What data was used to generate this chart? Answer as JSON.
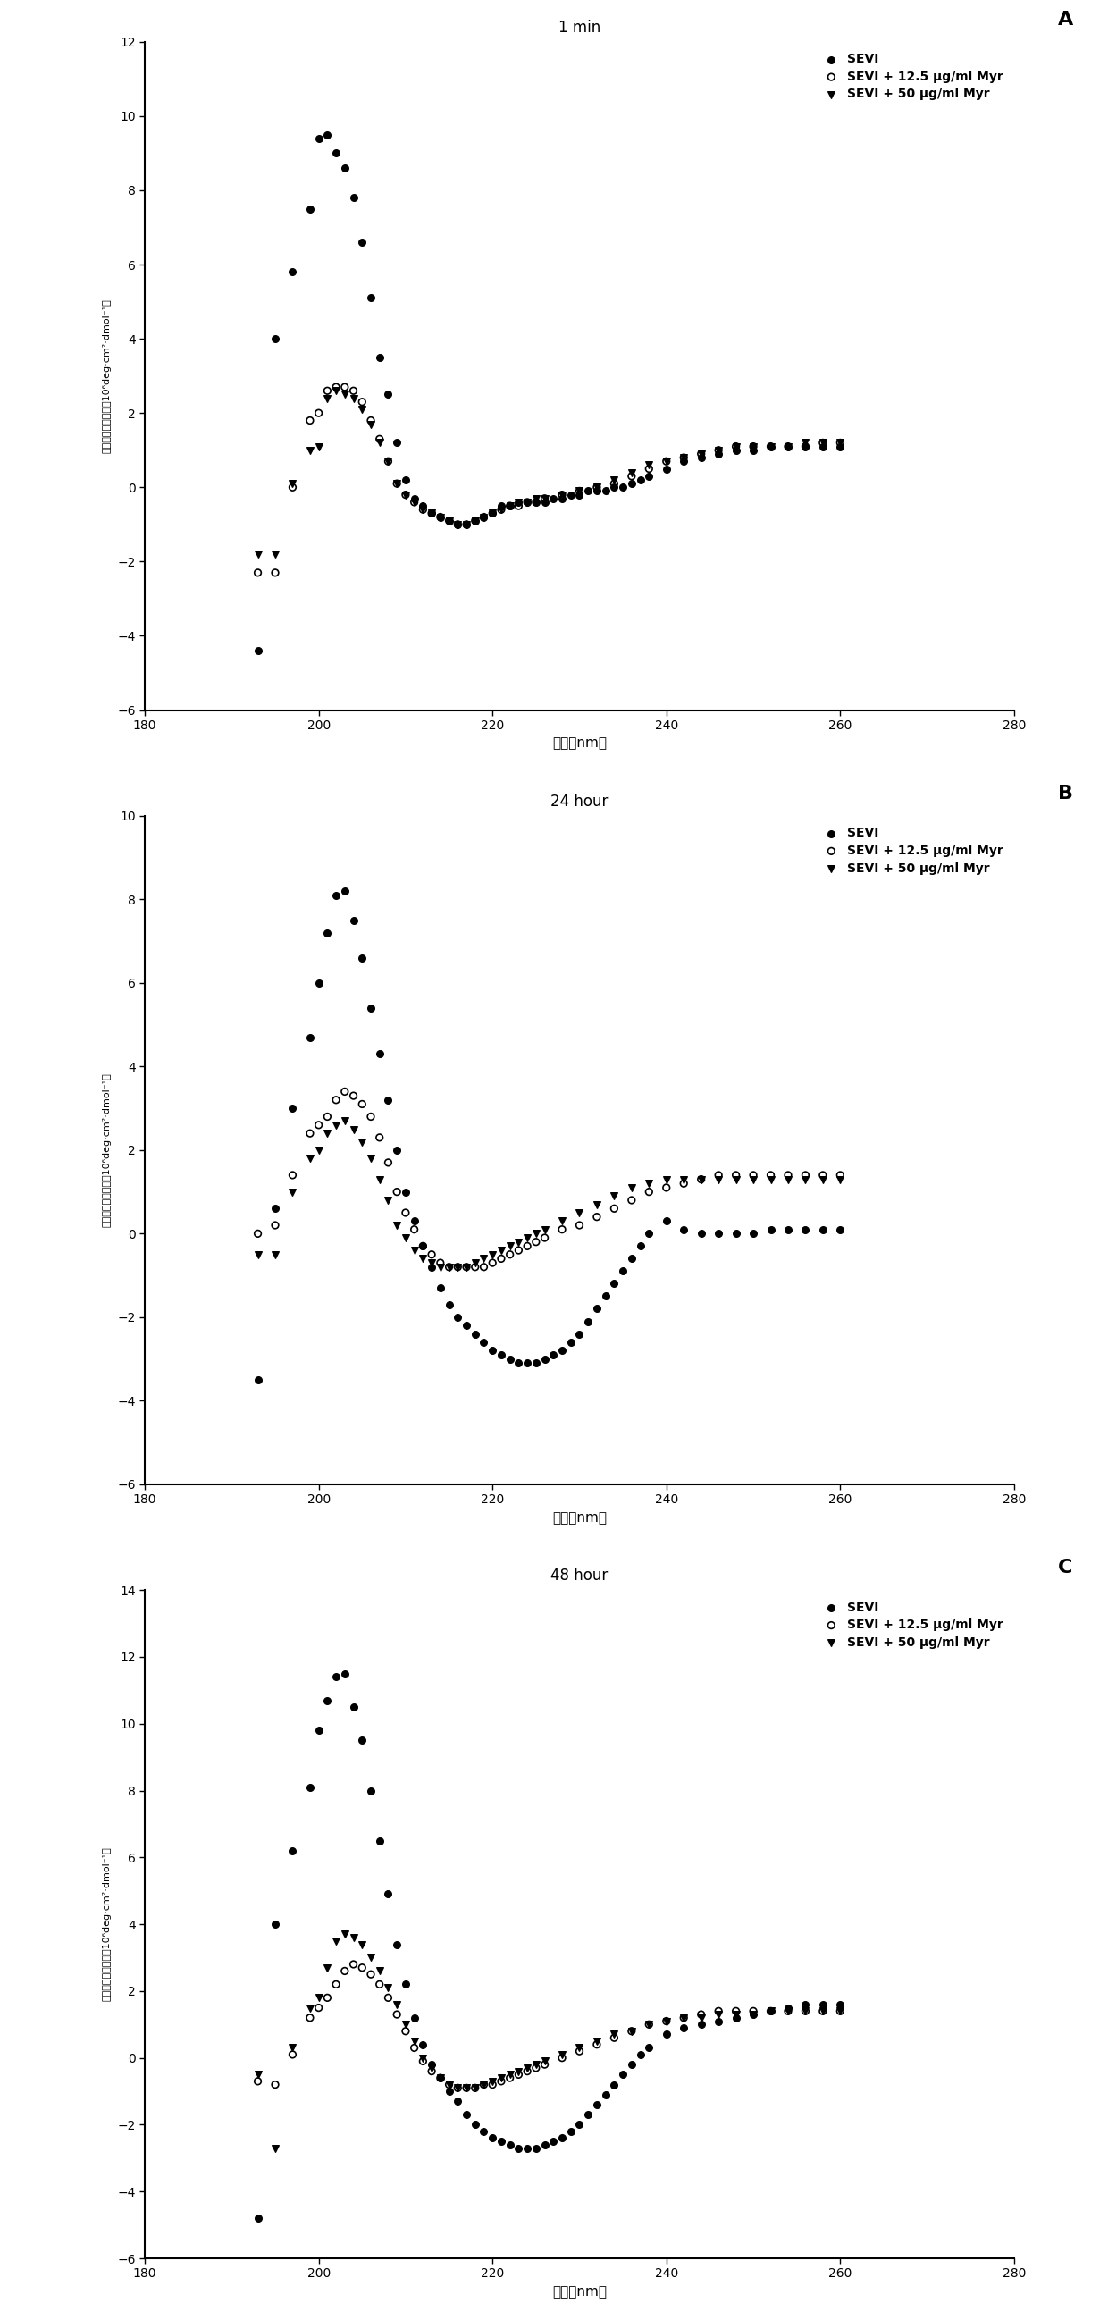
{
  "panels": [
    {
      "title": "1 min",
      "label": "A",
      "ylim": [
        -6,
        12
      ],
      "yticks": [
        -6,
        -4,
        -2,
        0,
        2,
        4,
        6,
        8,
        10,
        12
      ],
      "sevi": {
        "x": [
          193,
          195,
          197,
          199,
          200,
          201,
          202,
          203,
          204,
          205,
          206,
          207,
          208,
          209,
          210,
          211,
          212,
          213,
          214,
          215,
          216,
          217,
          218,
          219,
          220,
          221,
          222,
          223,
          224,
          225,
          226,
          227,
          228,
          229,
          230,
          231,
          232,
          233,
          234,
          235,
          236,
          237,
          238,
          240,
          242,
          244,
          246,
          248,
          250,
          252,
          254,
          256,
          258,
          260
        ],
        "y": [
          -4.4,
          4.0,
          5.8,
          7.5,
          9.4,
          9.5,
          9.0,
          8.6,
          7.8,
          6.6,
          5.1,
          3.5,
          2.5,
          1.2,
          0.2,
          -0.3,
          -0.5,
          -0.7,
          -0.8,
          -0.9,
          -1.0,
          -1.0,
          -0.9,
          -0.8,
          -0.7,
          -0.5,
          -0.5,
          -0.4,
          -0.4,
          -0.4,
          -0.4,
          -0.3,
          -0.3,
          -0.2,
          -0.2,
          -0.1,
          -0.1,
          -0.1,
          -0.0,
          -0.0,
          0.1,
          0.2,
          0.3,
          0.5,
          0.7,
          0.8,
          0.9,
          1.0,
          1.0,
          1.1,
          1.1,
          1.1,
          1.1,
          1.1
        ]
      },
      "sevi_12": {
        "x": [
          193,
          195,
          197,
          199,
          200,
          201,
          202,
          203,
          204,
          205,
          206,
          207,
          208,
          209,
          210,
          211,
          212,
          213,
          214,
          215,
          216,
          217,
          218,
          219,
          220,
          221,
          222,
          223,
          224,
          225,
          226,
          228,
          230,
          232,
          234,
          236,
          238,
          240,
          242,
          244,
          246,
          248,
          250,
          252,
          254,
          256,
          258,
          260
        ],
        "y": [
          -2.3,
          -2.3,
          0.0,
          1.8,
          2.0,
          2.6,
          2.7,
          2.7,
          2.6,
          2.3,
          1.8,
          1.3,
          0.7,
          0.1,
          -0.2,
          -0.4,
          -0.6,
          -0.7,
          -0.8,
          -0.9,
          -1.0,
          -1.0,
          -0.9,
          -0.8,
          -0.7,
          -0.6,
          -0.5,
          -0.5,
          -0.4,
          -0.4,
          -0.3,
          -0.2,
          -0.1,
          -0.0,
          0.1,
          0.3,
          0.5,
          0.7,
          0.8,
          0.9,
          1.0,
          1.1,
          1.1,
          1.1,
          1.1,
          1.1,
          1.2,
          1.2
        ]
      },
      "sevi_50": {
        "x": [
          193,
          195,
          197,
          199,
          200,
          201,
          202,
          203,
          204,
          205,
          206,
          207,
          208,
          209,
          210,
          211,
          212,
          213,
          214,
          215,
          216,
          217,
          218,
          219,
          220,
          221,
          222,
          223,
          224,
          225,
          226,
          228,
          230,
          232,
          234,
          236,
          238,
          240,
          242,
          244,
          246,
          248,
          250,
          252,
          254,
          256,
          258,
          260
        ],
        "y": [
          -1.8,
          -1.8,
          0.1,
          1.0,
          1.1,
          2.4,
          2.6,
          2.5,
          2.4,
          2.1,
          1.7,
          1.2,
          0.7,
          0.1,
          -0.2,
          -0.4,
          -0.6,
          -0.7,
          -0.8,
          -0.9,
          -1.0,
          -1.0,
          -0.9,
          -0.8,
          -0.7,
          -0.6,
          -0.5,
          -0.4,
          -0.4,
          -0.3,
          -0.3,
          -0.2,
          -0.1,
          0.0,
          0.2,
          0.4,
          0.6,
          0.7,
          0.8,
          0.9,
          1.0,
          1.1,
          1.1,
          1.1,
          1.1,
          1.2,
          1.2,
          1.2
        ]
      }
    },
    {
      "title": "24 hour",
      "label": "B",
      "ylim": [
        -6,
        10
      ],
      "yticks": [
        -6,
        -4,
        -2,
        0,
        2,
        4,
        6,
        8,
        10
      ],
      "sevi": {
        "x": [
          193,
          195,
          197,
          199,
          200,
          201,
          202,
          203,
          204,
          205,
          206,
          207,
          208,
          209,
          210,
          211,
          212,
          213,
          214,
          215,
          216,
          217,
          218,
          219,
          220,
          221,
          222,
          223,
          224,
          225,
          226,
          227,
          228,
          229,
          230,
          231,
          232,
          233,
          234,
          235,
          236,
          237,
          238,
          240,
          242,
          244,
          246,
          248,
          250,
          252,
          254,
          256,
          258,
          260
        ],
        "y": [
          -3.5,
          0.6,
          3.0,
          4.7,
          6.0,
          7.2,
          8.1,
          8.2,
          7.5,
          6.6,
          5.4,
          4.3,
          3.2,
          2.0,
          1.0,
          0.3,
          -0.3,
          -0.8,
          -1.3,
          -1.7,
          -2.0,
          -2.2,
          -2.4,
          -2.6,
          -2.8,
          -2.9,
          -3.0,
          -3.1,
          -3.1,
          -3.1,
          -3.0,
          -2.9,
          -2.8,
          -2.6,
          -2.4,
          -2.1,
          -1.8,
          -1.5,
          -1.2,
          -0.9,
          -0.6,
          -0.3,
          0.0,
          0.3,
          0.1,
          0.0,
          0.0,
          0.0,
          0.0,
          0.1,
          0.1,
          0.1,
          0.1,
          0.1
        ]
      },
      "sevi_12": {
        "x": [
          193,
          195,
          197,
          199,
          200,
          201,
          202,
          203,
          204,
          205,
          206,
          207,
          208,
          209,
          210,
          211,
          212,
          213,
          214,
          215,
          216,
          217,
          218,
          219,
          220,
          221,
          222,
          223,
          224,
          225,
          226,
          228,
          230,
          232,
          234,
          236,
          238,
          240,
          242,
          244,
          246,
          248,
          250,
          252,
          254,
          256,
          258,
          260
        ],
        "y": [
          0.0,
          0.2,
          1.4,
          2.4,
          2.6,
          2.8,
          3.2,
          3.4,
          3.3,
          3.1,
          2.8,
          2.3,
          1.7,
          1.0,
          0.5,
          0.1,
          -0.3,
          -0.5,
          -0.7,
          -0.8,
          -0.8,
          -0.8,
          -0.8,
          -0.8,
          -0.7,
          -0.6,
          -0.5,
          -0.4,
          -0.3,
          -0.2,
          -0.1,
          0.1,
          0.2,
          0.4,
          0.6,
          0.8,
          1.0,
          1.1,
          1.2,
          1.3,
          1.4,
          1.4,
          1.4,
          1.4,
          1.4,
          1.4,
          1.4,
          1.4
        ]
      },
      "sevi_50": {
        "x": [
          193,
          195,
          197,
          199,
          200,
          201,
          202,
          203,
          204,
          205,
          206,
          207,
          208,
          209,
          210,
          211,
          212,
          213,
          214,
          215,
          216,
          217,
          218,
          219,
          220,
          221,
          222,
          223,
          224,
          225,
          226,
          228,
          230,
          232,
          234,
          236,
          238,
          240,
          242,
          244,
          246,
          248,
          250,
          252,
          254,
          256,
          258,
          260
        ],
        "y": [
          -0.5,
          -0.5,
          1.0,
          1.8,
          2.0,
          2.4,
          2.6,
          2.7,
          2.5,
          2.2,
          1.8,
          1.3,
          0.8,
          0.2,
          -0.1,
          -0.4,
          -0.6,
          -0.7,
          -0.8,
          -0.8,
          -0.8,
          -0.8,
          -0.7,
          -0.6,
          -0.5,
          -0.4,
          -0.3,
          -0.2,
          -0.1,
          0.0,
          0.1,
          0.3,
          0.5,
          0.7,
          0.9,
          1.1,
          1.2,
          1.3,
          1.3,
          1.3,
          1.3,
          1.3,
          1.3,
          1.3,
          1.3,
          1.3,
          1.3,
          1.3
        ]
      }
    },
    {
      "title": "48 hour",
      "label": "C",
      "ylim": [
        -6,
        14
      ],
      "yticks": [
        -6,
        -4,
        -2,
        0,
        2,
        4,
        6,
        8,
        10,
        12,
        14
      ],
      "sevi": {
        "x": [
          193,
          195,
          197,
          199,
          200,
          201,
          202,
          203,
          204,
          205,
          206,
          207,
          208,
          209,
          210,
          211,
          212,
          213,
          214,
          215,
          216,
          217,
          218,
          219,
          220,
          221,
          222,
          223,
          224,
          225,
          226,
          227,
          228,
          229,
          230,
          231,
          232,
          233,
          234,
          235,
          236,
          237,
          238,
          240,
          242,
          244,
          246,
          248,
          250,
          252,
          254,
          256,
          258,
          260
        ],
        "y": [
          -4.8,
          4.0,
          6.2,
          8.1,
          9.8,
          10.7,
          11.4,
          11.5,
          10.5,
          9.5,
          8.0,
          6.5,
          4.9,
          3.4,
          2.2,
          1.2,
          0.4,
          -0.2,
          -0.6,
          -1.0,
          -1.3,
          -1.7,
          -2.0,
          -2.2,
          -2.4,
          -2.5,
          -2.6,
          -2.7,
          -2.7,
          -2.7,
          -2.6,
          -2.5,
          -2.4,
          -2.2,
          -2.0,
          -1.7,
          -1.4,
          -1.1,
          -0.8,
          -0.5,
          -0.2,
          0.1,
          0.3,
          0.7,
          0.9,
          1.0,
          1.1,
          1.2,
          1.3,
          1.4,
          1.5,
          1.6,
          1.6,
          1.6
        ]
      },
      "sevi_12": {
        "x": [
          193,
          195,
          197,
          199,
          200,
          201,
          202,
          203,
          204,
          205,
          206,
          207,
          208,
          209,
          210,
          211,
          212,
          213,
          214,
          215,
          216,
          217,
          218,
          219,
          220,
          221,
          222,
          223,
          224,
          225,
          226,
          228,
          230,
          232,
          234,
          236,
          238,
          240,
          242,
          244,
          246,
          248,
          250,
          252,
          254,
          256,
          258,
          260
        ],
        "y": [
          -0.7,
          -0.8,
          0.1,
          1.2,
          1.5,
          1.8,
          2.2,
          2.6,
          2.8,
          2.7,
          2.5,
          2.2,
          1.8,
          1.3,
          0.8,
          0.3,
          -0.1,
          -0.4,
          -0.6,
          -0.8,
          -0.9,
          -0.9,
          -0.9,
          -0.8,
          -0.8,
          -0.7,
          -0.6,
          -0.5,
          -0.4,
          -0.3,
          -0.2,
          0.0,
          0.2,
          0.4,
          0.6,
          0.8,
          1.0,
          1.1,
          1.2,
          1.3,
          1.4,
          1.4,
          1.4,
          1.4,
          1.4,
          1.4,
          1.4,
          1.4
        ]
      },
      "sevi_50": {
        "x": [
          193,
          195,
          197,
          199,
          200,
          201,
          202,
          203,
          204,
          205,
          206,
          207,
          208,
          209,
          210,
          211,
          212,
          213,
          214,
          215,
          216,
          217,
          218,
          219,
          220,
          221,
          222,
          223,
          224,
          225,
          226,
          228,
          230,
          232,
          234,
          236,
          238,
          240,
          242,
          244,
          246,
          248,
          250,
          252,
          254,
          256,
          258,
          260
        ],
        "y": [
          -0.5,
          -2.7,
          0.3,
          1.5,
          1.8,
          2.7,
          3.5,
          3.7,
          3.6,
          3.4,
          3.0,
          2.6,
          2.1,
          1.6,
          1.0,
          0.5,
          0.0,
          -0.3,
          -0.6,
          -0.8,
          -0.9,
          -0.9,
          -0.9,
          -0.8,
          -0.7,
          -0.6,
          -0.5,
          -0.4,
          -0.3,
          -0.2,
          -0.1,
          0.1,
          0.3,
          0.5,
          0.7,
          0.8,
          1.0,
          1.1,
          1.2,
          1.2,
          1.3,
          1.3,
          1.3,
          1.4,
          1.4,
          1.4,
          1.4,
          1.4
        ]
      }
    }
  ],
  "xlim": [
    180,
    280
  ],
  "xticks": [
    180,
    200,
    220,
    240,
    260,
    280
  ],
  "xlabel": "波长（nm）",
  "ylabel": "摩尔消光圆二色性（10⁶deg·cm²·dmol⁻¹）",
  "legend_labels": [
    "SEVI",
    "SEVI + 12.5 μg/ml Myr",
    "SEVI + 50 μg/ml Myr"
  ],
  "sevi_color": "#000000",
  "sevi12_color": "#000000",
  "sevi50_color": "#000000",
  "background_color": "#ffffff",
  "title_fontsize": 12,
  "label_fontsize": 11,
  "tick_fontsize": 10,
  "legend_fontsize": 10
}
